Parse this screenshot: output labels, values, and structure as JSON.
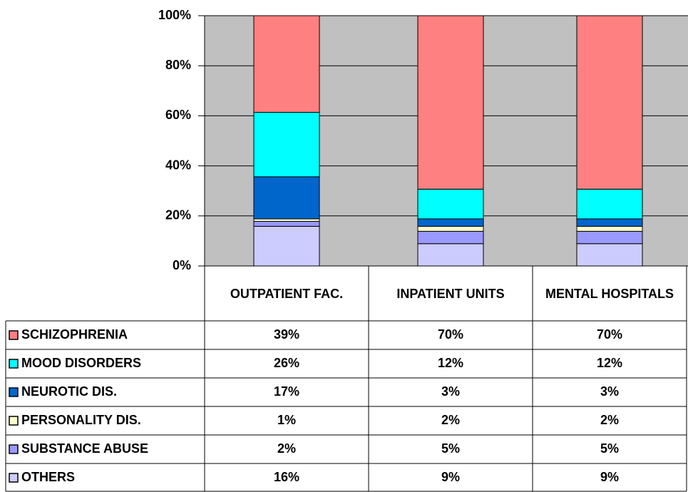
{
  "chart_data": {
    "type": "bar",
    "stacking": "percent",
    "categories": [
      "OUTPATIENT FAC.",
      "INPATIENT UNITS",
      "MENTAL HOSPITALS"
    ],
    "series": [
      {
        "name": "SCHIZOPHRENIA",
        "color": "#ff8080",
        "values": [
          39,
          70,
          70
        ],
        "value_labels": [
          "39%",
          "70%",
          "70%"
        ]
      },
      {
        "name": "MOOD DISORDERS",
        "color": "#00ffff",
        "values": [
          26,
          12,
          12
        ],
        "value_labels": [
          "26%",
          "12%",
          "12%"
        ]
      },
      {
        "name": "NEUROTIC DIS.",
        "color": "#0066cc",
        "values": [
          17,
          3,
          3
        ],
        "value_labels": [
          "17%",
          "3%",
          "3%"
        ]
      },
      {
        "name": "PERSONALITY DIS.",
        "color": "#ffffcc",
        "values": [
          1,
          2,
          2
        ],
        "value_labels": [
          "1%",
          "2%",
          "2%"
        ]
      },
      {
        "name": "SUBSTANCE ABUSE",
        "color": "#9999ff",
        "values": [
          2,
          5,
          5
        ],
        "value_labels": [
          "2%",
          "5%",
          "5%"
        ]
      },
      {
        "name": "OTHERS",
        "color": "#ccccff",
        "values": [
          16,
          9,
          9
        ],
        "value_labels": [
          "16%",
          "9%",
          "9%"
        ]
      }
    ],
    "ylim": [
      0,
      100
    ],
    "yticks": [
      {
        "value": 0,
        "label": "0%"
      },
      {
        "value": 20,
        "label": "20%"
      },
      {
        "value": 40,
        "label": "40%"
      },
      {
        "value": 60,
        "label": "60%"
      },
      {
        "value": 80,
        "label": "80%"
      },
      {
        "value": 100,
        "label": "100%"
      }
    ],
    "grid": true,
    "plot_background": "#c0c0c0"
  }
}
